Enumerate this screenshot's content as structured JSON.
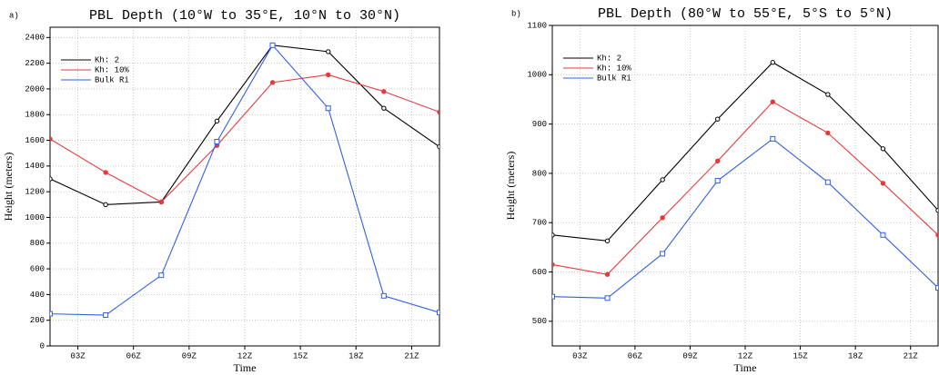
{
  "chart_data": [
    {
      "type": "line",
      "panel_label": "a)",
      "title": "PBL Depth (10°W to 35°E, 10°N to 30°N)",
      "xlabel": "Time",
      "ylabel": "Height (meters)",
      "x": [
        1.5,
        4.5,
        7.5,
        10.5,
        13.5,
        16.5,
        19.5,
        22.5
      ],
      "xlim": [
        1.5,
        22.5
      ],
      "xticks": [
        {
          "value": 3,
          "label": "03Z"
        },
        {
          "value": 6,
          "label": "06Z"
        },
        {
          "value": 9,
          "label": "09Z"
        },
        {
          "value": 12,
          "label": "12Z"
        },
        {
          "value": 15,
          "label": "15Z"
        },
        {
          "value": 18,
          "label": "18Z"
        },
        {
          "value": 21,
          "label": "21Z"
        }
      ],
      "ylim": [
        0,
        2480
      ],
      "yticks": [
        0,
        200,
        400,
        600,
        800,
        1000,
        1200,
        1400,
        1600,
        1800,
        2000,
        2200,
        2400
      ],
      "grid": true,
      "legend": "upper left",
      "series": [
        {
          "name": "Kh: 2",
          "color": "#000000",
          "marker": "circle",
          "values": [
            1300,
            1100,
            1120,
            1750,
            2340,
            2290,
            1850,
            1550
          ]
        },
        {
          "name": "Kh: 10%",
          "color": "#e8383b",
          "marker": "dot",
          "values": [
            1610,
            1350,
            1120,
            1560,
            2050,
            2110,
            1980,
            1820
          ]
        },
        {
          "name": "Bulk Ri",
          "color": "#2f5fe8",
          "marker": "square",
          "values": [
            250,
            240,
            550,
            1590,
            2340,
            1850,
            390,
            260
          ]
        }
      ]
    },
    {
      "type": "line",
      "panel_label": "b)",
      "title": "PBL Depth (80°W to 55°E, 5°S to 5°N)",
      "xlabel": "Time",
      "ylabel": "Height (meters)",
      "x": [
        1.5,
        4.5,
        7.5,
        10.5,
        13.5,
        16.5,
        19.5,
        22.5
      ],
      "xlim": [
        1.5,
        22.5
      ],
      "xticks": [
        {
          "value": 3,
          "label": "03Z"
        },
        {
          "value": 6,
          "label": "06Z"
        },
        {
          "value": 9,
          "label": "09Z"
        },
        {
          "value": 12,
          "label": "12Z"
        },
        {
          "value": 15,
          "label": "15Z"
        },
        {
          "value": 18,
          "label": "18Z"
        },
        {
          "value": 21,
          "label": "21Z"
        }
      ],
      "ylim": [
        450,
        1100
      ],
      "yticks": [
        500,
        600,
        700,
        800,
        900,
        1000,
        1100
      ],
      "grid": true,
      "legend": "upper left",
      "series": [
        {
          "name": "Kh: 2",
          "color": "#000000",
          "marker": "circle",
          "values": [
            675,
            663,
            787,
            910,
            1025,
            960,
            850,
            725
          ]
        },
        {
          "name": "Kh: 10%",
          "color": "#e8383b",
          "marker": "dot",
          "values": [
            615,
            595,
            710,
            825,
            945,
            882,
            780,
            675
          ]
        },
        {
          "name": "Bulk Ri",
          "color": "#2f5fe8",
          "marker": "square",
          "values": [
            550,
            547,
            637,
            785,
            870,
            782,
            675,
            568
          ]
        }
      ]
    }
  ]
}
